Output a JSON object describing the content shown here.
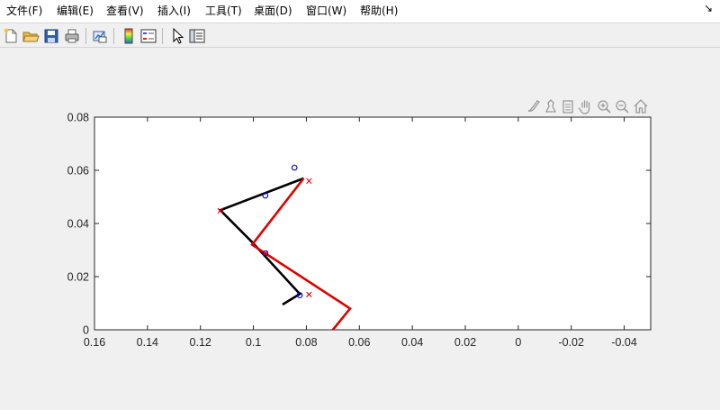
{
  "menubar": {
    "items": [
      "文件(F)",
      "编辑(E)",
      "查看(V)",
      "插入(I)",
      "工具(T)",
      "桌面(D)",
      "窗口(W)",
      "帮助(H)"
    ],
    "dock_arrow": "↘"
  },
  "toolbar": {
    "icons": [
      "new-file-icon",
      "open-folder-icon",
      "save-icon",
      "print-icon",
      "link-plot-icon",
      "colorbar-icon",
      "legend-icon",
      "pointer-icon",
      "property-inspector-icon"
    ]
  },
  "figure_tools": {
    "icons": [
      "brush-icon",
      "data-tips-icon",
      "export-icon",
      "pan-icon",
      "zoom-in-icon",
      "zoom-out-icon",
      "home-icon"
    ]
  },
  "chart_data": {
    "type": "line",
    "xlim": [
      0.16,
      -0.05
    ],
    "ylim": [
      0,
      0.08
    ],
    "x_reversed": true,
    "xticks": [
      0.16,
      0.14,
      0.12,
      0.1,
      0.08,
      0.06,
      0.04,
      0.02,
      0,
      -0.02,
      -0.04
    ],
    "xtick_labels": [
      "0.16",
      "0.14",
      "0.12",
      "0.1",
      "0.08",
      "0.06",
      "0.04",
      "0.02",
      "0",
      "-0.02",
      "-0.04"
    ],
    "yticks": [
      0,
      0.02,
      0.04,
      0.06,
      0.08
    ],
    "ytick_labels": [
      "0",
      "0.02",
      "0.04",
      "0.06",
      "0.08"
    ],
    "grid": false,
    "series": [
      {
        "color": "#000000",
        "style": "line",
        "x": [
          0.089,
          0.0825,
          0.1005,
          0.1125,
          0.081
        ],
        "y": [
          0.0095,
          0.0135,
          0.033,
          0.045,
          0.057
        ]
      },
      {
        "color": "#e00000",
        "style": "line",
        "x": [
          0.07,
          0.0635,
          0.1005,
          0.081
        ],
        "y": [
          0,
          0.008,
          0.032,
          0.057
        ]
      },
      {
        "color": "#0000d0",
        "style": "marker-o",
        "x": [
          0.0845,
          0.0955,
          0.0955,
          0.0825
        ],
        "y": [
          0.061,
          0.0505,
          0.0288,
          0.013
        ]
      },
      {
        "color": "#e00000",
        "style": "marker-x",
        "x": [
          0.079,
          0.079,
          0.1125,
          0.0955
        ],
        "y": [
          0.056,
          0.0133,
          0.0448,
          0.0288
        ]
      }
    ]
  }
}
